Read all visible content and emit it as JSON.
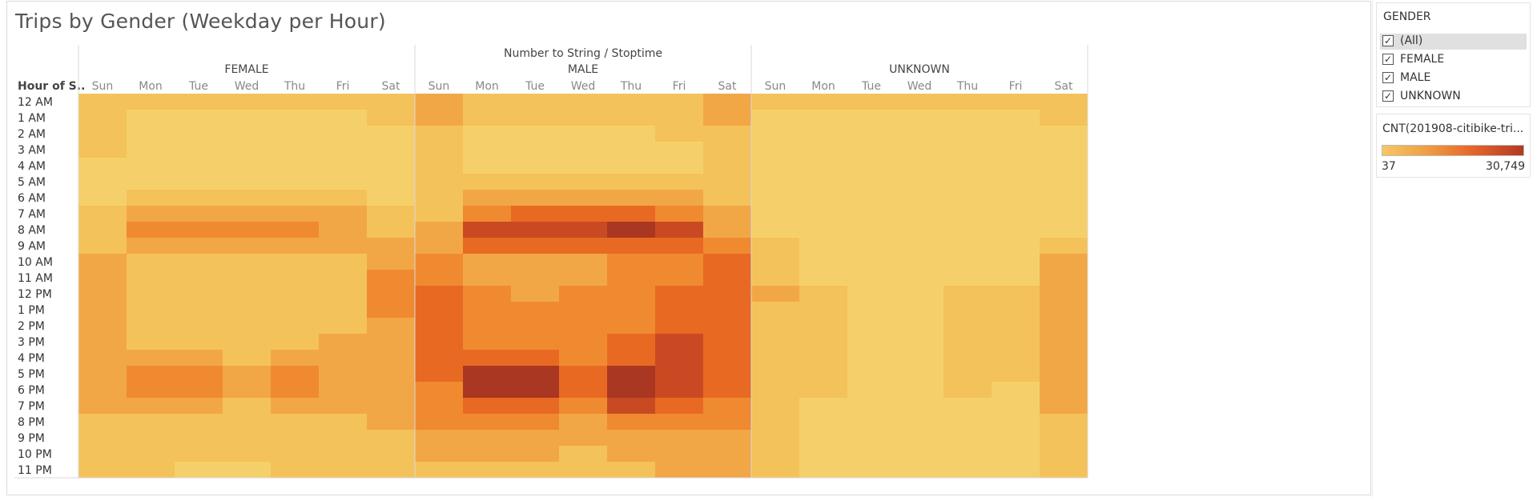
{
  "sheet_title": "Trips by Gender (Weekday per Hour)",
  "colors": {
    "scale": [
      "#f5d06a",
      "#f4c25a",
      "#f2a746",
      "#ef8a30",
      "#e86a22",
      "#c94a22",
      "#a93722"
    ],
    "grid_line": "#d9d9d9"
  },
  "filter": {
    "title": "GENDER",
    "items": [
      {
        "label": "(All)",
        "checked": true,
        "selected": true
      },
      {
        "label": "FEMALE",
        "checked": true,
        "selected": false
      },
      {
        "label": "MALE",
        "checked": true,
        "selected": false
      },
      {
        "label": "UNKNOWN",
        "checked": true,
        "selected": false
      }
    ],
    "check_glyph": "✓"
  },
  "legend": {
    "title": "CNT(201908-citibike-tri...",
    "min_label": "37",
    "max_label": "30,749"
  },
  "chart_data": {
    "type": "heatmap",
    "column_header": "Number to String  /  Stoptime",
    "row_header": "Hour of S..",
    "groups": [
      "FEMALE",
      "MALE",
      "UNKNOWN"
    ],
    "days": [
      "Sun",
      "Mon",
      "Tue",
      "Wed",
      "Thu",
      "Fri",
      "Sat"
    ],
    "hours": [
      "12 AM",
      "1 AM",
      "2 AM",
      "3 AM",
      "4 AM",
      "5 AM",
      "6 AM",
      "7 AM",
      "8 AM",
      "9 AM",
      "10 AM",
      "11 AM",
      "12 PM",
      "1 PM",
      "2 PM",
      "3 PM",
      "4 PM",
      "5 PM",
      "6 PM",
      "7 PM",
      "8 PM",
      "9 PM",
      "10 PM",
      "11 PM"
    ],
    "value_range": [
      37,
      30749
    ],
    "intensity_note": "values are relative color intensity levels 0-6 per cell",
    "levels": {
      "FEMALE": [
        [
          1,
          1,
          1,
          1,
          1,
          1,
          1
        ],
        [
          1,
          0,
          0,
          0,
          0,
          0,
          1
        ],
        [
          1,
          0,
          0,
          0,
          0,
          0,
          0
        ],
        [
          1,
          0,
          0,
          0,
          0,
          0,
          0
        ],
        [
          0,
          0,
          0,
          0,
          0,
          0,
          0
        ],
        [
          0,
          0,
          0,
          0,
          0,
          0,
          0
        ],
        [
          0,
          1,
          1,
          1,
          1,
          1,
          0
        ],
        [
          1,
          2,
          2,
          2,
          2,
          2,
          1
        ],
        [
          1,
          3,
          3,
          3,
          3,
          2,
          1
        ],
        [
          1,
          2,
          2,
          2,
          2,
          2,
          2
        ],
        [
          2,
          1,
          1,
          1,
          1,
          1,
          2
        ],
        [
          2,
          1,
          1,
          1,
          1,
          1,
          3
        ],
        [
          2,
          1,
          1,
          1,
          1,
          1,
          3
        ],
        [
          2,
          1,
          1,
          1,
          1,
          1,
          3
        ],
        [
          2,
          1,
          1,
          1,
          1,
          1,
          2
        ],
        [
          2,
          1,
          1,
          1,
          1,
          2,
          2
        ],
        [
          2,
          2,
          2,
          1,
          2,
          2,
          2
        ],
        [
          2,
          3,
          3,
          2,
          3,
          2,
          2
        ],
        [
          2,
          3,
          3,
          2,
          3,
          2,
          2
        ],
        [
          2,
          2,
          2,
          1,
          2,
          2,
          2
        ],
        [
          1,
          1,
          1,
          1,
          1,
          1,
          2
        ],
        [
          1,
          1,
          1,
          1,
          1,
          1,
          1
        ],
        [
          1,
          1,
          1,
          1,
          1,
          1,
          1
        ],
        [
          1,
          1,
          0,
          0,
          1,
          1,
          1
        ]
      ],
      "MALE": [
        [
          2,
          1,
          1,
          1,
          1,
          1,
          2
        ],
        [
          2,
          1,
          1,
          1,
          1,
          1,
          2
        ],
        [
          1,
          0,
          0,
          0,
          0,
          1,
          1
        ],
        [
          1,
          0,
          0,
          0,
          0,
          0,
          1
        ],
        [
          1,
          0,
          0,
          0,
          0,
          0,
          1
        ],
        [
          1,
          1,
          1,
          1,
          1,
          1,
          1
        ],
        [
          1,
          2,
          2,
          2,
          2,
          2,
          1
        ],
        [
          1,
          3,
          4,
          4,
          4,
          3,
          2
        ],
        [
          2,
          5,
          5,
          5,
          6,
          5,
          2
        ],
        [
          2,
          4,
          4,
          4,
          4,
          4,
          3
        ],
        [
          3,
          2,
          2,
          2,
          3,
          3,
          4
        ],
        [
          3,
          2,
          2,
          2,
          3,
          3,
          4
        ],
        [
          4,
          3,
          2,
          3,
          3,
          4,
          4
        ],
        [
          4,
          3,
          3,
          3,
          3,
          4,
          4
        ],
        [
          4,
          3,
          3,
          3,
          3,
          4,
          4
        ],
        [
          4,
          3,
          3,
          3,
          4,
          5,
          4
        ],
        [
          4,
          4,
          4,
          3,
          4,
          5,
          4
        ],
        [
          4,
          6,
          6,
          4,
          6,
          5,
          4
        ],
        [
          3,
          6,
          6,
          4,
          6,
          5,
          4
        ],
        [
          3,
          4,
          4,
          3,
          5,
          4,
          3
        ],
        [
          3,
          3,
          3,
          2,
          3,
          3,
          3
        ],
        [
          2,
          2,
          2,
          2,
          2,
          2,
          2
        ],
        [
          2,
          2,
          2,
          1,
          2,
          2,
          2
        ],
        [
          1,
          1,
          1,
          1,
          1,
          2,
          2
        ]
      ],
      "UNKNOWN": [
        [
          1,
          1,
          1,
          1,
          1,
          1,
          1
        ],
        [
          0,
          0,
          0,
          0,
          0,
          0,
          1
        ],
        [
          0,
          0,
          0,
          0,
          0,
          0,
          0
        ],
        [
          0,
          0,
          0,
          0,
          0,
          0,
          0
        ],
        [
          0,
          0,
          0,
          0,
          0,
          0,
          0
        ],
        [
          0,
          0,
          0,
          0,
          0,
          0,
          0
        ],
        [
          0,
          0,
          0,
          0,
          0,
          0,
          0
        ],
        [
          0,
          0,
          0,
          0,
          0,
          0,
          0
        ],
        [
          0,
          0,
          0,
          0,
          0,
          0,
          0
        ],
        [
          1,
          0,
          0,
          0,
          0,
          0,
          1
        ],
        [
          1,
          0,
          0,
          0,
          0,
          0,
          2
        ],
        [
          1,
          0,
          0,
          0,
          0,
          0,
          2
        ],
        [
          2,
          1,
          0,
          0,
          1,
          1,
          2
        ],
        [
          1,
          1,
          0,
          0,
          1,
          1,
          2
        ],
        [
          1,
          1,
          0,
          0,
          1,
          1,
          2
        ],
        [
          1,
          1,
          0,
          0,
          1,
          1,
          2
        ],
        [
          1,
          1,
          0,
          0,
          1,
          1,
          2
        ],
        [
          1,
          1,
          0,
          0,
          1,
          1,
          2
        ],
        [
          1,
          1,
          0,
          0,
          1,
          0,
          2
        ],
        [
          1,
          0,
          0,
          0,
          0,
          0,
          2
        ],
        [
          1,
          0,
          0,
          0,
          0,
          0,
          1
        ],
        [
          1,
          0,
          0,
          0,
          0,
          0,
          1
        ],
        [
          1,
          0,
          0,
          0,
          0,
          0,
          1
        ],
        [
          1,
          0,
          0,
          0,
          0,
          0,
          1
        ]
      ]
    }
  }
}
